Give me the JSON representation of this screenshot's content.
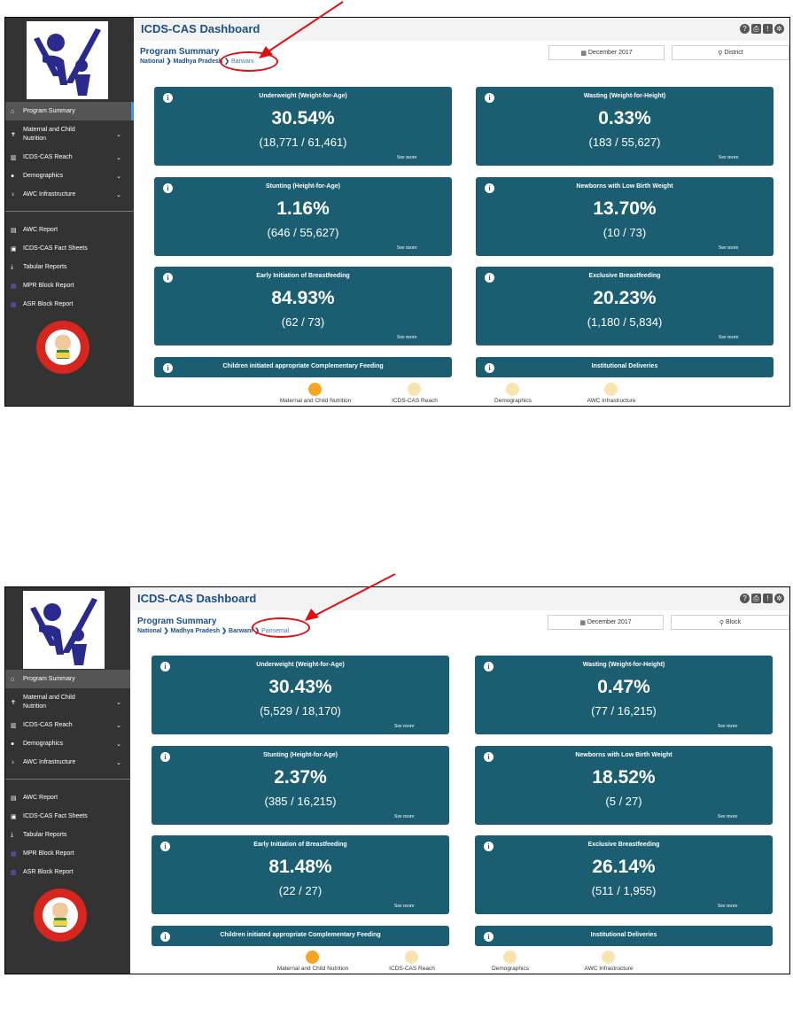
{
  "screens": [
    {
      "app_title": "ICDS-CAS Dashboard",
      "section_title": "Program Summary",
      "breadcrumb": [
        "National",
        "Madhya Pradesh",
        "Barwani"
      ],
      "month_select": "December 2017",
      "location_select": "District",
      "cards": [
        {
          "title": "Underweight (Weight-for-Age)",
          "value": "30.54%",
          "detail": "(18,771 / 61,461)",
          "more": "See more"
        },
        {
          "title": "Wasting (Weight-for-Height)",
          "value": "0.33%",
          "detail": "(183 / 55,627)",
          "more": "See more"
        },
        {
          "title": "Stunting (Height-for-Age)",
          "value": "1.16%",
          "detail": "(646 / 55,627)",
          "more": "See more"
        },
        {
          "title": "Newborns with Low Birth Weight",
          "value": "13.70%",
          "detail": "(10 / 73)",
          "more": "See more"
        },
        {
          "title": "Early Initiation of Breastfeeding",
          "value": "84.93%",
          "detail": "(62 / 73)",
          "more": "See more"
        },
        {
          "title": "Exclusive Breastfeeding",
          "value": "20.23%",
          "detail": "(1,180 / 5,834)",
          "more": "See more"
        },
        {
          "title": "Children initiated appropriate Complementary Feeding"
        },
        {
          "title": "Institutional Deliveries"
        }
      ]
    },
    {
      "app_title": "ICDS-CAS Dashboard",
      "section_title": "Program Summary",
      "breadcrumb": [
        "National",
        "Madhya Pradesh",
        "Barwani",
        "Pansemal"
      ],
      "month_select": "December 2017",
      "location_select": "Block",
      "cards": [
        {
          "title": "Underweight (Weight-for-Age)",
          "value": "30.43%",
          "detail": "(5,529 / 18,170)",
          "more": "See more"
        },
        {
          "title": "Wasting (Weight-for-Height)",
          "value": "0.47%",
          "detail": "(77 / 16,215)",
          "more": "See more"
        },
        {
          "title": "Stunting (Height-for-Age)",
          "value": "2.37%",
          "detail": "(385 / 16,215)",
          "more": "See more"
        },
        {
          "title": "Newborns with Low Birth Weight",
          "value": "18.52%",
          "detail": "(5 / 27)",
          "more": "See more"
        },
        {
          "title": "Early Initiation of Breastfeeding",
          "value": "81.48%",
          "detail": "(22 / 27)",
          "more": "See more"
        },
        {
          "title": "Exclusive Breastfeeding",
          "value": "26.14%",
          "detail": "(511 / 1,955)",
          "more": "See more"
        },
        {
          "title": "Children initiated appropriate Complementary Feeding"
        },
        {
          "title": "Institutional Deliveries"
        }
      ]
    }
  ],
  "sidebar": {
    "items": [
      {
        "label": "Program Summary",
        "icon": "home-icon"
      },
      {
        "label": "Maternal and Child Nutrition",
        "icon": "child-icon"
      },
      {
        "label": "ICDS-CAS Reach",
        "icon": "bar-chart-icon"
      },
      {
        "label": "Demographics",
        "icon": "users-icon"
      },
      {
        "label": "AWC Infrastructure",
        "icon": "lightbulb-icon"
      },
      {
        "label": "AWC Report",
        "icon": "report-icon"
      },
      {
        "label": "ICDS-CAS Fact Sheets",
        "icon": "file-icon"
      },
      {
        "label": "Tabular Reports",
        "icon": "download-icon"
      },
      {
        "label": "MPR Block Report",
        "icon": "table-icon"
      },
      {
        "label": "ASR Block Report",
        "icon": "table-icon"
      }
    ]
  },
  "section_dots": [
    "Maternal and Child Nutrition",
    "ICDS-CAS Reach",
    "Demographics",
    "AWC Infrastructure"
  ],
  "active_section": "Maternal and Child Nutrition",
  "colors": {
    "sidebar": "#333333",
    "card": "#1b5e72",
    "title": "#1a4f8a",
    "dot_active": "#f5a623",
    "dot_inactive": "#f7e4b0",
    "annotation": "#e01010"
  }
}
